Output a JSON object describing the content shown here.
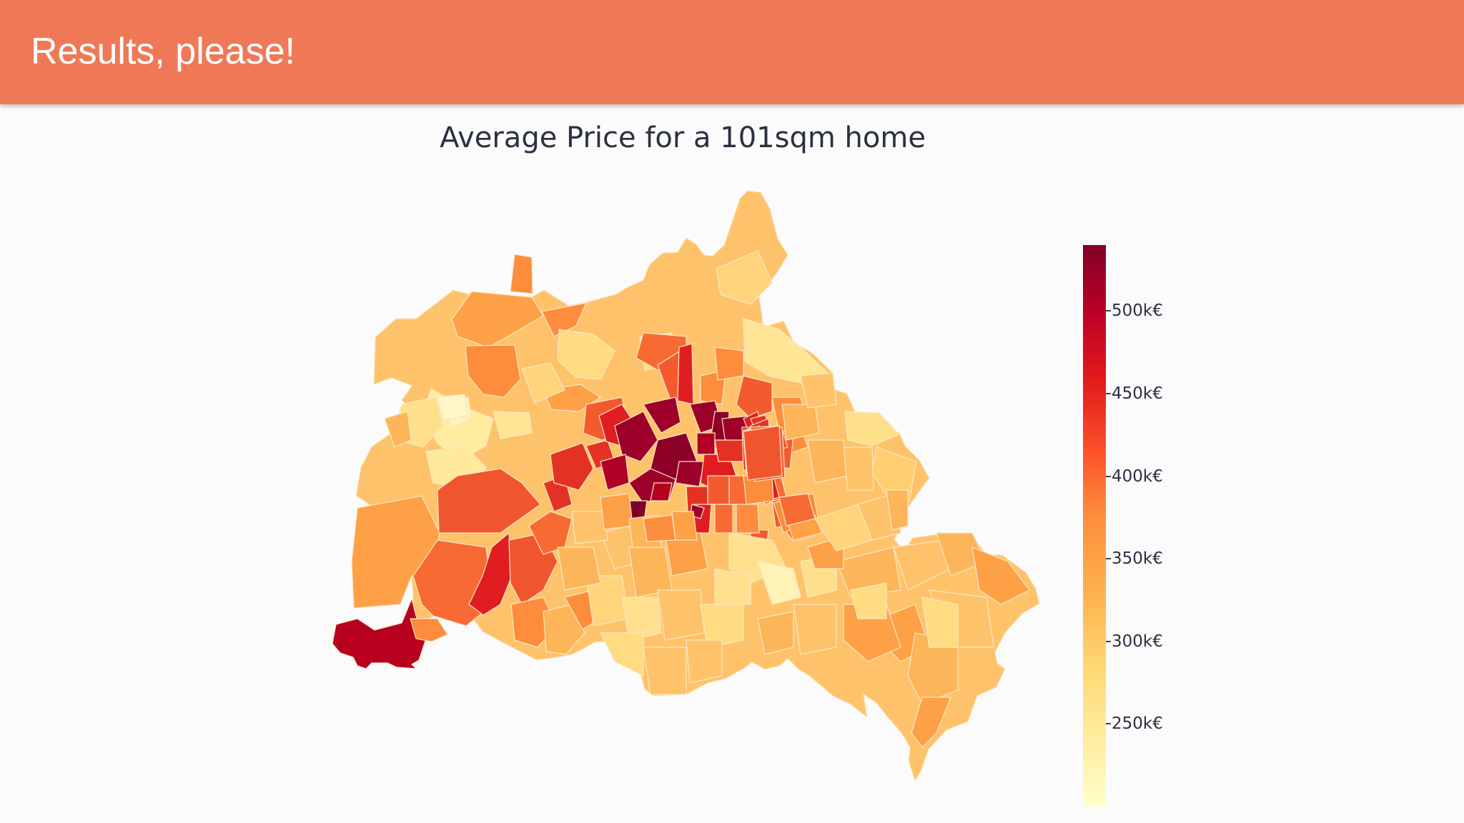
{
  "header": {
    "title": "Results, please!",
    "color": "#ef7957"
  },
  "map": {
    "title": "Average Price for a 101sqm home",
    "colorscale": [
      "#ffffcc",
      "#ffeda0",
      "#fed976",
      "#feb24c",
      "#fd8d3c",
      "#fc4e2a",
      "#e31a1c",
      "#bd0026",
      "#800026"
    ],
    "colorbar": {
      "min": 200,
      "max": 540,
      "unit": "k€",
      "ticks": [
        {
          "value": 500,
          "label": "500k€"
        },
        {
          "value": 450,
          "label": "450k€"
        },
        {
          "value": 400,
          "label": "400k€"
        },
        {
          "value": 350,
          "label": "350k€"
        },
        {
          "value": 300,
          "label": "300k€"
        },
        {
          "value": 250,
          "label": "250k€"
        }
      ]
    }
  }
}
